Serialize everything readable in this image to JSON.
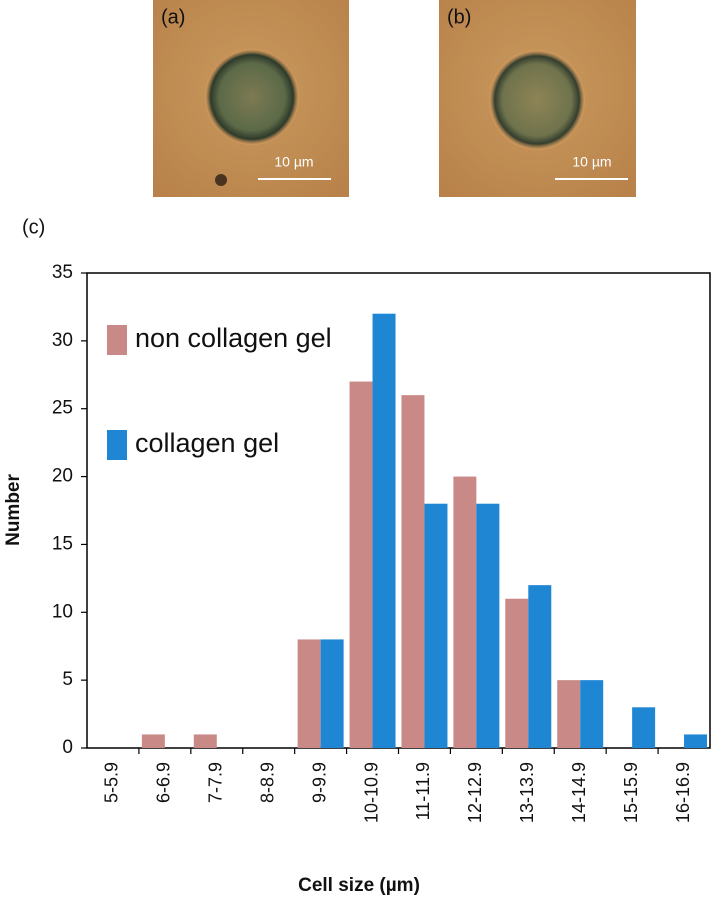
{
  "panels": [
    {
      "label": "(a)",
      "scale_bar": "10 µm"
    },
    {
      "label": "(b)",
      "scale_bar": "10 µm"
    }
  ],
  "chart_data": {
    "type": "bar",
    "panel_label": "(c)",
    "x_label": "Cell size (µm)",
    "y_label": "Number",
    "categories": [
      "5-5.9",
      "6-6.9",
      "7-7.9",
      "8-8.9",
      "9-9.9",
      "10-10.9",
      "11-11.9",
      "12-12.9",
      "13-13.9",
      "14-14.9",
      "15-15.9",
      "16-16.9"
    ],
    "series": [
      {
        "name": "non collagen gel",
        "color": "#c98a87",
        "values": [
          0,
          1,
          1,
          0,
          8,
          27,
          26,
          20,
          11,
          5,
          0,
          0
        ]
      },
      {
        "name": "collagen gel",
        "color": "#1f86d4",
        "values": [
          0,
          0,
          0,
          0,
          8,
          32,
          18,
          18,
          12,
          5,
          3,
          1
        ]
      }
    ],
    "ylim": [
      0,
      35
    ],
    "yticks": [
      0,
      5,
      10,
      15,
      20,
      25,
      30,
      35
    ],
    "legend": "upper left",
    "grid": false
  }
}
